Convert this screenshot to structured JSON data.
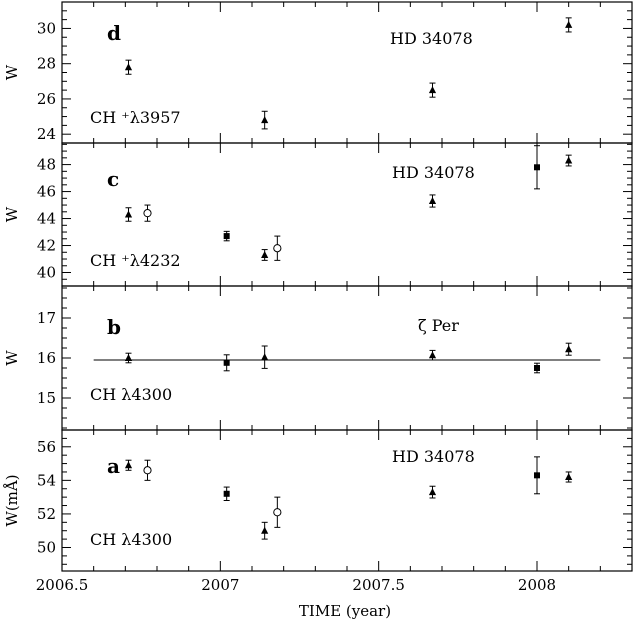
{
  "chart_data": {
    "type": "scatter",
    "xlabel": "TIME (year)",
    "xlim": [
      2006.5,
      2008.3
    ],
    "xticks": [
      2006.5,
      2007,
      2007.5,
      2008
    ],
    "xtick_labels": [
      "2006.5",
      "2007",
      "2007.5",
      "2008"
    ],
    "panels": [
      {
        "letter": "d",
        "ylabel": "W",
        "ylim": [
          23.5,
          31.5
        ],
        "yticks": [
          24,
          26,
          28,
          30
        ],
        "ytick_labels": [
          "24",
          "26",
          "28",
          "30"
        ],
        "star": "HD 34078",
        "line": "CH ⁺λ3957",
        "points": [
          {
            "x": 2006.71,
            "y": 27.8,
            "err": 0.4,
            "marker": "triangle"
          },
          {
            "x": 2007.14,
            "y": 24.8,
            "err": 0.5,
            "marker": "triangle"
          },
          {
            "x": 2007.67,
            "y": 26.5,
            "err": 0.4,
            "marker": "triangle"
          },
          {
            "x": 2008.1,
            "y": 30.2,
            "err": 0.4,
            "marker": "triangle"
          }
        ]
      },
      {
        "letter": "c",
        "ylabel": "W",
        "ylim": [
          39,
          49.6
        ],
        "yticks": [
          40,
          42,
          44,
          46,
          48
        ],
        "ytick_labels": [
          "40",
          "42",
          "44",
          "46",
          "48"
        ],
        "star": "HD 34078",
        "line": "CH ⁺λ4232",
        "points": [
          {
            "x": 2006.71,
            "y": 44.3,
            "err": 0.5,
            "marker": "triangle"
          },
          {
            "x": 2006.77,
            "y": 44.4,
            "err": 0.6,
            "marker": "circle"
          },
          {
            "x": 2007.02,
            "y": 42.7,
            "err": 0.35,
            "marker": "square"
          },
          {
            "x": 2007.14,
            "y": 41.3,
            "err": 0.4,
            "marker": "triangle"
          },
          {
            "x": 2007.18,
            "y": 41.8,
            "err": 0.9,
            "marker": "circle"
          },
          {
            "x": 2007.67,
            "y": 45.3,
            "err": 0.45,
            "marker": "triangle"
          },
          {
            "x": 2008.0,
            "y": 47.8,
            "err": 1.6,
            "marker": "square"
          },
          {
            "x": 2008.1,
            "y": 48.3,
            "err": 0.4,
            "marker": "triangle"
          }
        ]
      },
      {
        "letter": "b",
        "ylabel": "W",
        "ylim": [
          14.2,
          17.8
        ],
        "yticks": [
          15,
          16,
          17
        ],
        "ytick_labels": [
          "15",
          "16",
          "17"
        ],
        "star": "ζ Per",
        "line": "CH λ4300",
        "reference_y": 15.95,
        "points": [
          {
            "x": 2006.71,
            "y": 16.0,
            "err": 0.12,
            "marker": "triangle"
          },
          {
            "x": 2007.02,
            "y": 15.88,
            "err": 0.2,
            "marker": "square"
          },
          {
            "x": 2007.14,
            "y": 16.02,
            "err": 0.28,
            "marker": "triangle"
          },
          {
            "x": 2007.67,
            "y": 16.07,
            "err": 0.12,
            "marker": "triangle"
          },
          {
            "x": 2008.0,
            "y": 15.75,
            "err": 0.12,
            "marker": "square"
          },
          {
            "x": 2008.1,
            "y": 16.22,
            "err": 0.15,
            "marker": "triangle"
          }
        ]
      },
      {
        "letter": "a",
        "ylabel": "W(mÅ)",
        "ylim": [
          48.6,
          57.0
        ],
        "yticks": [
          50,
          52,
          54,
          56
        ],
        "ytick_labels": [
          "50",
          "52",
          "54",
          "56"
        ],
        "star": "HD 34078",
        "line": "CH λ4300",
        "points": [
          {
            "x": 2006.71,
            "y": 54.9,
            "err": 0.3,
            "marker": "triangle"
          },
          {
            "x": 2006.77,
            "y": 54.6,
            "err": 0.6,
            "marker": "circle"
          },
          {
            "x": 2007.02,
            "y": 53.2,
            "err": 0.4,
            "marker": "square"
          },
          {
            "x": 2007.14,
            "y": 51.0,
            "err": 0.5,
            "marker": "triangle"
          },
          {
            "x": 2007.18,
            "y": 52.1,
            "err": 0.9,
            "marker": "circle"
          },
          {
            "x": 2007.67,
            "y": 53.3,
            "err": 0.35,
            "marker": "triangle"
          },
          {
            "x": 2008.0,
            "y": 54.3,
            "err": 1.1,
            "marker": "square"
          },
          {
            "x": 2008.1,
            "y": 54.2,
            "err": 0.3,
            "marker": "triangle"
          }
        ]
      }
    ]
  }
}
